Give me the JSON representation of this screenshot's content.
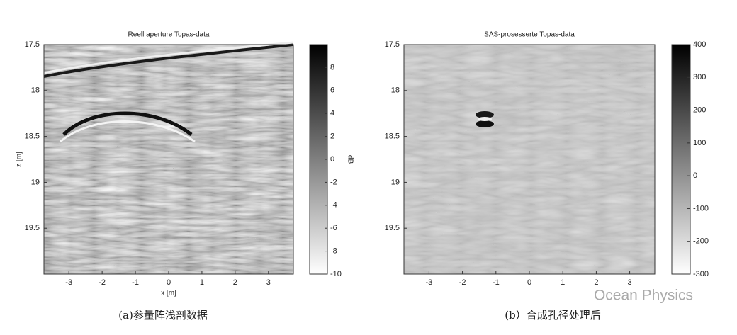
{
  "chart_data": [
    {
      "type": "heatmap",
      "title": "Reell aperture Topas-data",
      "xlabel": "x [m]",
      "ylabel": "z [m]",
      "xlim": [
        -3.75,
        3.75
      ],
      "ylim": [
        20,
        17.5
      ],
      "xticks": [
        -3,
        -2,
        -1,
        0,
        1,
        2,
        3
      ],
      "yticks": [
        17.5,
        18,
        18.5,
        19,
        19.5
      ],
      "colorbar": {
        "label": "dB",
        "lim": [
          -10,
          10
        ],
        "ticks": [
          8,
          6,
          4,
          2,
          0,
          -2,
          -4,
          -6,
          -8,
          -10
        ],
        "colors": [
          "#ffffff",
          "#000000"
        ]
      }
    },
    {
      "type": "heatmap",
      "title": "SAS-prosesserte Topas-data",
      "xlim": [
        -3.75,
        3.75
      ],
      "ylim": [
        20,
        17.5
      ],
      "xticks": [
        -3,
        -2,
        -1,
        0,
        1,
        2,
        3
      ],
      "yticks": [
        17.5,
        18,
        18.5,
        19,
        19.5
      ],
      "colorbar": {
        "lim": [
          -300,
          400
        ],
        "ticks": [
          400,
          300,
          200,
          100,
          0,
          -100,
          -200,
          -300
        ],
        "colors": [
          "#ffffff",
          "#000000"
        ]
      }
    }
  ],
  "captions": [
    "(a)参量阵浅剖数据",
    "(b）合成孔径处理后"
  ],
  "watermark": "Ocean Physics"
}
